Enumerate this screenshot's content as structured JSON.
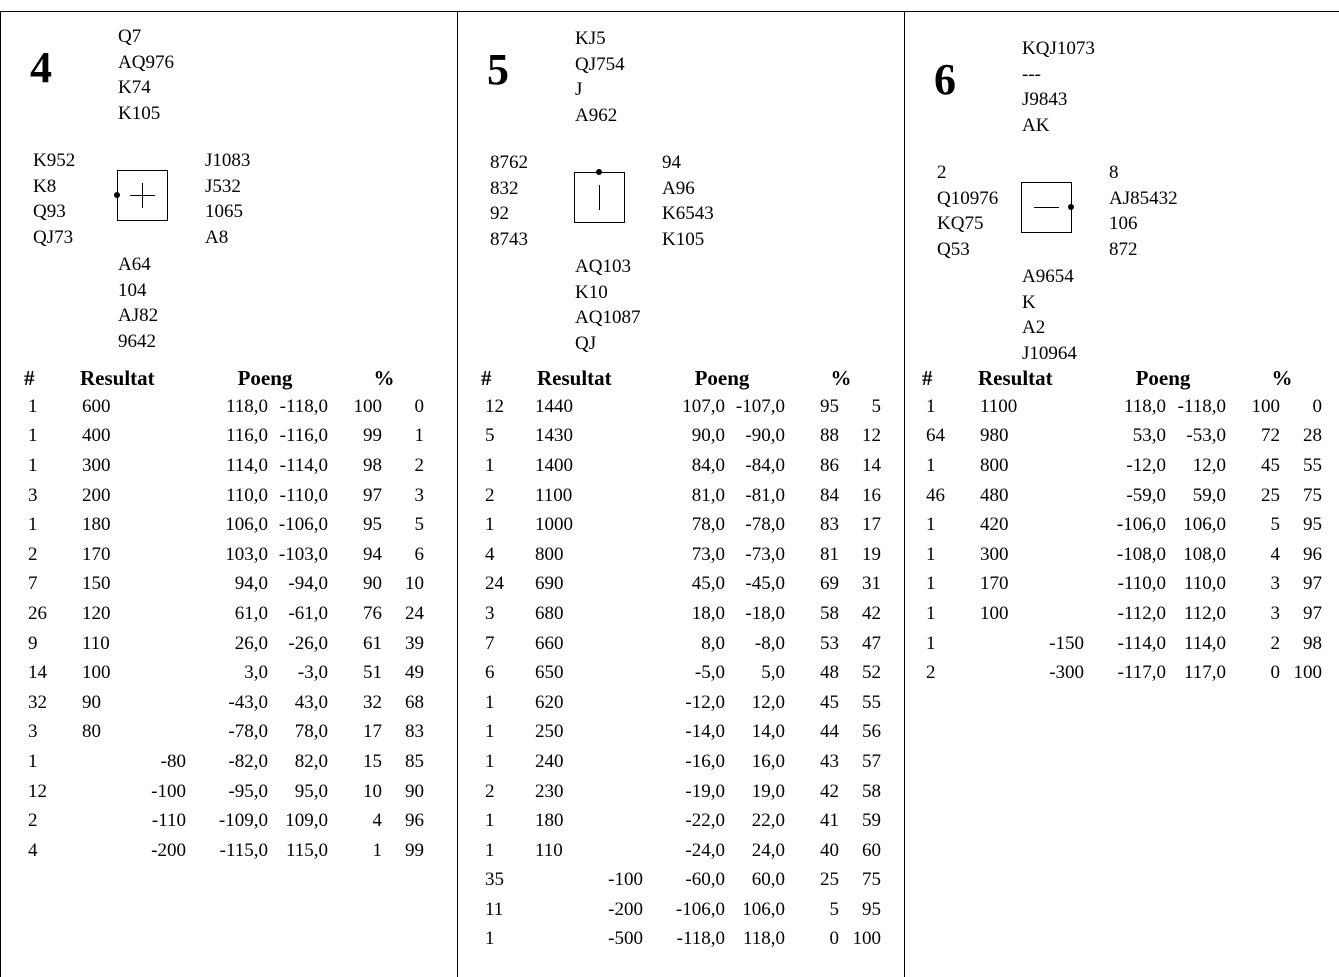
{
  "headers": {
    "count": "#",
    "result": "Resultat",
    "points": "Poeng",
    "percent": "%"
  },
  "boards": [
    {
      "number": "4",
      "dealer": "west",
      "vul": "both",
      "north": [
        "Q7",
        "AQ976",
        "K74",
        "K105"
      ],
      "west": [
        "K952",
        "K8",
        "Q93",
        "QJ73"
      ],
      "east": [
        "J1083",
        "J532",
        "1065",
        "A8"
      ],
      "south": [
        "A64",
        "104",
        "AJ82",
        "9642"
      ],
      "rows": [
        [
          "1",
          "600",
          "",
          "118,0",
          "-118,0",
          "100",
          "0"
        ],
        [
          "1",
          "400",
          "",
          "116,0",
          "-116,0",
          "99",
          "1"
        ],
        [
          "1",
          "300",
          "",
          "114,0",
          "-114,0",
          "98",
          "2"
        ],
        [
          "3",
          "200",
          "",
          "110,0",
          "-110,0",
          "97",
          "3"
        ],
        [
          "1",
          "180",
          "",
          "106,0",
          "-106,0",
          "95",
          "5"
        ],
        [
          "2",
          "170",
          "",
          "103,0",
          "-103,0",
          "94",
          "6"
        ],
        [
          "7",
          "150",
          "",
          "94,0",
          "-94,0",
          "90",
          "10"
        ],
        [
          "26",
          "120",
          "",
          "61,0",
          "-61,0",
          "76",
          "24"
        ],
        [
          "9",
          "110",
          "",
          "26,0",
          "-26,0",
          "61",
          "39"
        ],
        [
          "14",
          "100",
          "",
          "3,0",
          "-3,0",
          "51",
          "49"
        ],
        [
          "32",
          "90",
          "",
          "-43,0",
          "43,0",
          "32",
          "68"
        ],
        [
          "3",
          "80",
          "",
          "-78,0",
          "78,0",
          "17",
          "83"
        ],
        [
          "1",
          "",
          "-80",
          "-82,0",
          "82,0",
          "15",
          "85"
        ],
        [
          "12",
          "",
          "-100",
          "-95,0",
          "95,0",
          "10",
          "90"
        ],
        [
          "2",
          "",
          "-110",
          "-109,0",
          "109,0",
          "4",
          "96"
        ],
        [
          "4",
          "",
          "-200",
          "-115,0",
          "115,0",
          "1",
          "99"
        ]
      ]
    },
    {
      "number": "5",
      "dealer": "north",
      "vul": "ns",
      "north": [
        "KJ5",
        "QJ754",
        "J",
        "A962"
      ],
      "west": [
        "8762",
        "832",
        "92",
        "8743"
      ],
      "east": [
        "94",
        "A96",
        "K6543",
        "K105"
      ],
      "south": [
        "AQ103",
        "K10",
        "AQ1087",
        "QJ"
      ],
      "rows": [
        [
          "12",
          "1440",
          "",
          "107,0",
          "-107,0",
          "95",
          "5"
        ],
        [
          "5",
          "1430",
          "",
          "90,0",
          "-90,0",
          "88",
          "12"
        ],
        [
          "1",
          "1400",
          "",
          "84,0",
          "-84,0",
          "86",
          "14"
        ],
        [
          "2",
          "1100",
          "",
          "81,0",
          "-81,0",
          "84",
          "16"
        ],
        [
          "1",
          "1000",
          "",
          "78,0",
          "-78,0",
          "83",
          "17"
        ],
        [
          "4",
          "800",
          "",
          "73,0",
          "-73,0",
          "81",
          "19"
        ],
        [
          "24",
          "690",
          "",
          "45,0",
          "-45,0",
          "69",
          "31"
        ],
        [
          "3",
          "680",
          "",
          "18,0",
          "-18,0",
          "58",
          "42"
        ],
        [
          "7",
          "660",
          "",
          "8,0",
          "-8,0",
          "53",
          "47"
        ],
        [
          "6",
          "650",
          "",
          "-5,0",
          "5,0",
          "48",
          "52"
        ],
        [
          "1",
          "620",
          "",
          "-12,0",
          "12,0",
          "45",
          "55"
        ],
        [
          "1",
          "250",
          "",
          "-14,0",
          "14,0",
          "44",
          "56"
        ],
        [
          "1",
          "240",
          "",
          "-16,0",
          "16,0",
          "43",
          "57"
        ],
        [
          "2",
          "230",
          "",
          "-19,0",
          "19,0",
          "42",
          "58"
        ],
        [
          "1",
          "180",
          "",
          "-22,0",
          "22,0",
          "41",
          "59"
        ],
        [
          "1",
          "110",
          "",
          "-24,0",
          "24,0",
          "40",
          "60"
        ],
        [
          "35",
          "",
          "-100",
          "-60,0",
          "60,0",
          "25",
          "75"
        ],
        [
          "11",
          "",
          "-200",
          "-106,0",
          "106,0",
          "5",
          "95"
        ],
        [
          "1",
          "",
          "-500",
          "-118,0",
          "118,0",
          "0",
          "100"
        ]
      ]
    },
    {
      "number": "6",
      "dealer": "east",
      "vul": "ew",
      "north": [
        "KQJ1073",
        "---",
        "J9843",
        "AK"
      ],
      "west": [
        "2",
        "Q10976",
        "KQ75",
        "Q53"
      ],
      "east": [
        "8",
        "AJ85432",
        "106",
        "872"
      ],
      "south": [
        "A9654",
        "K",
        "A2",
        "J10964"
      ],
      "rows": [
        [
          "1",
          "1100",
          "",
          "118,0",
          "-118,0",
          "100",
          "0"
        ],
        [
          "64",
          "980",
          "",
          "53,0",
          "-53,0",
          "72",
          "28"
        ],
        [
          "1",
          "800",
          "",
          "-12,0",
          "12,0",
          "45",
          "55"
        ],
        [
          "46",
          "480",
          "",
          "-59,0",
          "59,0",
          "25",
          "75"
        ],
        [
          "1",
          "420",
          "",
          "-106,0",
          "106,0",
          "5",
          "95"
        ],
        [
          "1",
          "300",
          "",
          "-108,0",
          "108,0",
          "4",
          "96"
        ],
        [
          "1",
          "170",
          "",
          "-110,0",
          "110,0",
          "3",
          "97"
        ],
        [
          "1",
          "100",
          "",
          "-112,0",
          "112,0",
          "3",
          "97"
        ],
        [
          "1",
          "",
          "-150",
          "-114,0",
          "114,0",
          "2",
          "98"
        ],
        [
          "2",
          "",
          "-300",
          "-117,0",
          "117,0",
          "0",
          "100"
        ]
      ]
    }
  ]
}
